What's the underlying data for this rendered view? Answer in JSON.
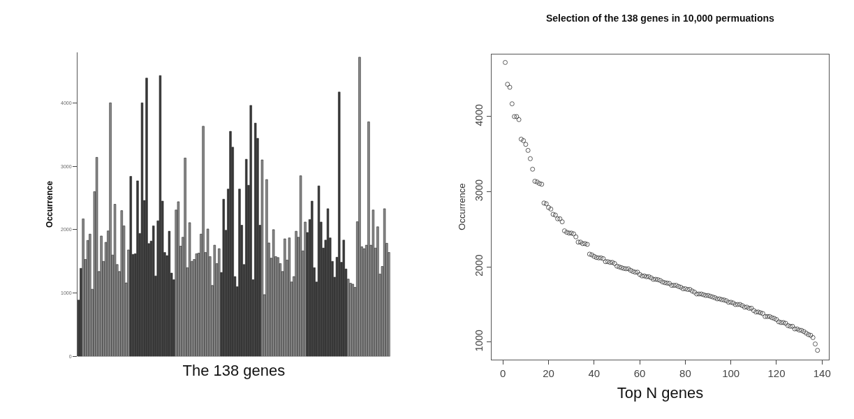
{
  "chart_data": [
    {
      "type": "bar",
      "xlabel": "The 138 genes",
      "ylabel": "Occurrence",
      "categories": [
        null,
        null,
        null,
        null,
        null,
        null,
        null,
        null,
        null,
        null,
        null,
        null,
        null,
        null,
        null,
        null,
        null,
        null,
        null,
        null,
        null,
        null,
        null,
        null,
        null,
        null,
        null,
        null,
        null,
        null,
        null,
        null,
        null,
        null,
        null,
        null,
        null,
        null,
        null,
        null,
        null,
        null,
        null,
        null,
        null,
        null,
        null,
        null,
        null,
        null,
        null,
        null,
        null,
        null,
        null,
        null,
        null,
        null,
        null,
        null,
        null,
        null,
        null,
        null,
        null,
        null,
        null,
        null,
        null,
        null,
        null,
        null,
        null,
        null,
        null,
        null,
        null,
        null,
        null,
        null,
        null,
        null,
        null,
        null,
        null,
        null,
        null,
        null,
        null,
        null,
        null,
        null,
        null,
        null,
        null,
        null,
        null,
        null,
        null,
        null,
        null,
        null,
        null,
        null,
        null,
        null,
        null,
        null,
        null,
        null,
        null,
        null,
        null,
        null,
        null,
        null,
        null,
        null,
        null,
        null,
        null,
        null,
        null,
        null,
        null,
        null,
        null,
        null,
        null,
        null,
        null,
        null,
        null,
        null,
        null,
        null,
        null,
        null
      ],
      "values": [
        890,
        1390,
        2170,
        1530,
        1830,
        1930,
        1060,
        2600,
        3140,
        1340,
        1900,
        1500,
        1800,
        1980,
        4000,
        1600,
        2400,
        1450,
        1340,
        2300,
        2060,
        1160,
        1680,
        2840,
        1610,
        1620,
        2770,
        1940,
        4000,
        2460,
        4390,
        1780,
        1820,
        2060,
        1270,
        2140,
        4430,
        2450,
        1640,
        1590,
        1975,
        1315,
        1210,
        2310,
        2440,
        1740,
        1880,
        3130,
        1400,
        2110,
        1500,
        1530,
        1620,
        1630,
        1930,
        3630,
        1640,
        2010,
        1575,
        1120,
        1755,
        1465,
        1700,
        1325,
        2480,
        1990,
        2640,
        3550,
        3300,
        1260,
        1100,
        2640,
        2070,
        1450,
        3110,
        2700,
        3960,
        1210,
        3680,
        3440,
        2070,
        3100,
        975,
        2790,
        1790,
        1550,
        2000,
        1575,
        1560,
        1465,
        1340,
        1855,
        1520,
        1870,
        1175,
        1260,
        1975,
        1880,
        2850,
        1665,
        2120,
        1955,
        2160,
        2450,
        1400,
        1175,
        2690,
        2120,
        1710,
        1835,
        2330,
        1870,
        1500,
        1250,
        1565,
        4170,
        1485,
        1835,
        1380,
        1220,
        1155,
        1140,
        1090,
        2125,
        4720,
        1730,
        1700,
        1755,
        3700,
        1755,
        2310,
        1710,
        2045,
        1300,
        1420,
        2330,
        1785,
        1640
      ],
      "colors": [
        "#3a3a3a",
        "#3a3a3a",
        "#8c8c8c",
        "#8c8c8c",
        "#8c8c8c",
        "#8c8c8c",
        "#8c8c8c",
        "#8c8c8c",
        "#8c8c8c",
        "#8c8c8c",
        "#8c8c8c",
        "#8c8c8c",
        "#8c8c8c",
        "#8c8c8c",
        "#8c8c8c",
        "#8c8c8c",
        "#8c8c8c",
        "#8c8c8c",
        "#8c8c8c",
        "#8c8c8c",
        "#8c8c8c",
        "#8c8c8c",
        "#8c8c8c",
        "#3a3a3a",
        "#3a3a3a",
        "#3a3a3a",
        "#3a3a3a",
        "#3a3a3a",
        "#3a3a3a",
        "#3a3a3a",
        "#3a3a3a",
        "#3a3a3a",
        "#3a3a3a",
        "#3a3a3a",
        "#3a3a3a",
        "#3a3a3a",
        "#3a3a3a",
        "#3a3a3a",
        "#3a3a3a",
        "#3a3a3a",
        "#3a3a3a",
        "#3a3a3a",
        "#3a3a3a",
        "#8c8c8c",
        "#8c8c8c",
        "#8c8c8c",
        "#8c8c8c",
        "#8c8c8c",
        "#8c8c8c",
        "#8c8c8c",
        "#8c8c8c",
        "#8c8c8c",
        "#8c8c8c",
        "#8c8c8c",
        "#8c8c8c",
        "#8c8c8c",
        "#8c8c8c",
        "#8c8c8c",
        "#8c8c8c",
        "#8c8c8c",
        "#8c8c8c",
        "#8c8c8c",
        "#8c8c8c",
        "#3a3a3a",
        "#3a3a3a",
        "#3a3a3a",
        "#3a3a3a",
        "#3a3a3a",
        "#3a3a3a",
        "#3a3a3a",
        "#3a3a3a",
        "#3a3a3a",
        "#3a3a3a",
        "#3a3a3a",
        "#3a3a3a",
        "#3a3a3a",
        "#3a3a3a",
        "#3a3a3a",
        "#3a3a3a",
        "#3a3a3a",
        "#3a3a3a",
        "#8c8c8c",
        "#8c8c8c",
        "#8c8c8c",
        "#8c8c8c",
        "#8c8c8c",
        "#8c8c8c",
        "#8c8c8c",
        "#8c8c8c",
        "#8c8c8c",
        "#8c8c8c",
        "#8c8c8c",
        "#8c8c8c",
        "#8c8c8c",
        "#8c8c8c",
        "#8c8c8c",
        "#8c8c8c",
        "#8c8c8c",
        "#8c8c8c",
        "#8c8c8c",
        "#8c8c8c",
        "#3a3a3a",
        "#3a3a3a",
        "#3a3a3a",
        "#3a3a3a",
        "#3a3a3a",
        "#3a3a3a",
        "#3a3a3a",
        "#3a3a3a",
        "#3a3a3a",
        "#3a3a3a",
        "#3a3a3a",
        "#3a3a3a",
        "#3a3a3a",
        "#3a3a3a",
        "#3a3a3a",
        "#3a3a3a",
        "#3a3a3a",
        "#3a3a3a",
        "#8c8c8c",
        "#8c8c8c",
        "#8c8c8c",
        "#8c8c8c",
        "#8c8c8c",
        "#8c8c8c",
        "#8c8c8c",
        "#8c8c8c",
        "#8c8c8c",
        "#8c8c8c",
        "#8c8c8c",
        "#8c8c8c",
        "#8c8c8c",
        "#8c8c8c",
        "#8c8c8c",
        "#8c8c8c",
        "#8c8c8c",
        "#8c8c8c",
        "#8c8c8c"
      ],
      "ylim": [
        0,
        4800
      ],
      "yticks": [
        0,
        1000,
        2000,
        3000,
        4000
      ]
    },
    {
      "type": "scatter",
      "title": "Selection of the 138 genes in 10,000 permuations",
      "xlabel": "Top N genes",
      "ylabel": "Occurrence",
      "marker": "circle",
      "x": [
        1,
        2,
        3,
        4,
        5,
        6,
        7,
        8,
        9,
        10,
        11,
        12,
        13,
        14,
        15,
        16,
        17,
        18,
        19,
        20,
        21,
        22,
        23,
        24,
        25,
        26,
        27,
        28,
        29,
        30,
        31,
        32,
        33,
        34,
        35,
        36,
        37,
        38,
        39,
        40,
        41,
        42,
        43,
        44,
        45,
        46,
        47,
        48,
        49,
        50,
        51,
        52,
        53,
        54,
        55,
        56,
        57,
        58,
        59,
        60,
        61,
        62,
        63,
        64,
        65,
        66,
        67,
        68,
        69,
        70,
        71,
        72,
        73,
        74,
        75,
        76,
        77,
        78,
        79,
        80,
        81,
        82,
        83,
        84,
        85,
        86,
        87,
        88,
        89,
        90,
        91,
        92,
        93,
        94,
        95,
        96,
        97,
        98,
        99,
        100,
        101,
        102,
        103,
        104,
        105,
        106,
        107,
        108,
        109,
        110,
        111,
        112,
        113,
        114,
        115,
        116,
        117,
        118,
        119,
        120,
        121,
        122,
        123,
        124,
        125,
        126,
        127,
        128,
        129,
        130,
        131,
        132,
        133,
        134,
        135,
        136,
        137,
        138
      ],
      "values": [
        4720,
        4430,
        4390,
        4170,
        4000,
        4000,
        3960,
        3700,
        3680,
        3630,
        3550,
        3440,
        3300,
        3140,
        3130,
        3110,
        3100,
        2850,
        2840,
        2790,
        2770,
        2700,
        2690,
        2640,
        2640,
        2600,
        2480,
        2460,
        2450,
        2450,
        2440,
        2400,
        2330,
        2330,
        2310,
        2310,
        2300,
        2170,
        2160,
        2140,
        2125,
        2120,
        2120,
        2110,
        2070,
        2070,
        2060,
        2060,
        2045,
        2010,
        2000,
        1990,
        1980,
        1975,
        1975,
        1955,
        1940,
        1930,
        1930,
        1900,
        1880,
        1880,
        1870,
        1870,
        1855,
        1835,
        1835,
        1830,
        1820,
        1800,
        1790,
        1785,
        1780,
        1755,
        1755,
        1755,
        1740,
        1730,
        1710,
        1710,
        1700,
        1700,
        1680,
        1665,
        1640,
        1640,
        1640,
        1630,
        1620,
        1620,
        1610,
        1600,
        1590,
        1575,
        1575,
        1565,
        1560,
        1550,
        1530,
        1530,
        1520,
        1500,
        1500,
        1500,
        1485,
        1465,
        1465,
        1450,
        1450,
        1420,
        1400,
        1400,
        1390,
        1380,
        1340,
        1340,
        1340,
        1325,
        1315,
        1300,
        1270,
        1260,
        1260,
        1250,
        1220,
        1210,
        1210,
        1175,
        1175,
        1160,
        1155,
        1140,
        1120,
        1100,
        1090,
        1060,
        975,
        890
      ],
      "color": "#333333",
      "xlim": [
        -5,
        143
      ],
      "ylim": [
        770,
        4830
      ],
      "xticks": [
        0,
        20,
        40,
        60,
        80,
        100,
        120,
        140
      ],
      "yticks": [
        1000,
        2000,
        3000,
        4000
      ]
    }
  ]
}
